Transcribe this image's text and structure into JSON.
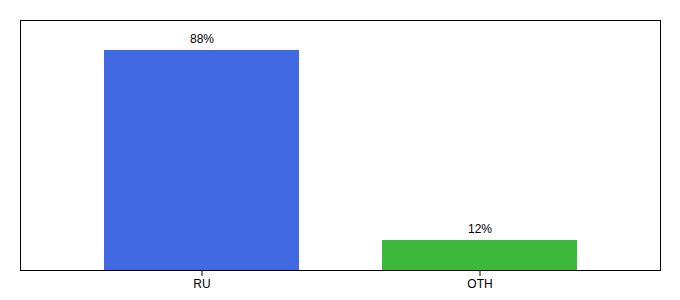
{
  "chart_data": {
    "type": "bar",
    "categories": [
      "RU",
      "OTH"
    ],
    "values": [
      88,
      12
    ],
    "value_labels": [
      "88%",
      "12%"
    ],
    "colors": [
      "#4169e1",
      "#3cb93c"
    ],
    "data_labels": true,
    "ylim": [
      0,
      100
    ],
    "yticks": [],
    "tick_labels": "x",
    "grid": false
  }
}
